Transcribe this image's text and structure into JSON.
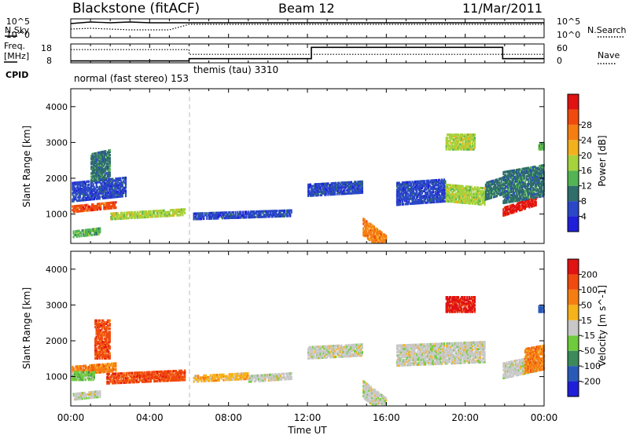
{
  "header": {
    "title": "Blackstone (fitACF)",
    "beam": "Beam 12",
    "date": "11/Mar/2011"
  },
  "panel_labels": {
    "nsky": "N.Sky",
    "nsearch": "N.Search",
    "freq_line1": "Freq.",
    "freq_line2": "[MHz]",
    "nave": "Nave",
    "cpid": "CPID"
  },
  "cpid": {
    "first": "normal (fast stereo) 153",
    "second": "themis (tau) 3310"
  },
  "chart_data": [
    {
      "type": "line",
      "name": "noise",
      "yticks_left": [
        "10^5",
        "10^0"
      ],
      "yticks_right": [
        "10^5",
        "10^0"
      ],
      "series": [
        {
          "name": "N.Sky",
          "style": "solid"
        },
        {
          "name": "N.Search",
          "style": "dotted"
        }
      ],
      "x": [
        0,
        1,
        2,
        3,
        4,
        5,
        6,
        8,
        10,
        12,
        14,
        16,
        18,
        20,
        22,
        24
      ],
      "values_sky_log": [
        0.8,
        0.9,
        0.85,
        0.9,
        0.85,
        0.85,
        0.85,
        0.85,
        0.85,
        0.85,
        0.85,
        0.85,
        0.85,
        0.85,
        0.85,
        0.85
      ],
      "values_search_log": [
        0.55,
        0.6,
        0.55,
        0.5,
        0.5,
        0.5,
        0.85,
        0.85,
        0.85,
        0.85,
        0.85,
        0.85,
        0.85,
        0.85,
        0.85,
        0.85
      ]
    },
    {
      "type": "line",
      "name": "freq-nave",
      "yticks_left": [
        "18",
        "8"
      ],
      "yticks_right": [
        "60",
        "0"
      ],
      "freq_mhz_steps": [
        [
          0,
          9.0
        ],
        [
          6,
          9.0
        ],
        [
          6,
          10.2
        ],
        [
          12.2,
          10.2
        ],
        [
          12.2,
          16.2
        ],
        [
          21.9,
          16.2
        ],
        [
          21.9,
          10.2
        ],
        [
          24,
          10.2
        ]
      ],
      "nave_steps": [
        [
          0,
          0.7
        ],
        [
          6,
          0.7
        ],
        [
          6,
          0.45
        ],
        [
          24,
          0.45
        ]
      ]
    },
    {
      "type": "heatmap",
      "name": "power",
      "ylabel": "Slant Range [km]",
      "ylim": [
        180,
        4500
      ],
      "yticks": [
        1000,
        2000,
        3000,
        4000
      ],
      "colorbar_label": "Power [dB]",
      "colorbar_ticks": [
        4,
        8,
        12,
        16,
        20,
        24,
        28
      ],
      "colorbar_colors": [
        "#1f1fd9",
        "#2a47c8",
        "#2f6e6a",
        "#52b452",
        "#a6d23c",
        "#f2b11d",
        "#f57e12",
        "#f04a0e",
        "#e01212"
      ],
      "patches": [
        {
          "t0": 0.05,
          "t1": 2.3,
          "r0": 1050,
          "r1": 1250,
          "dr": 120,
          "c": 7
        },
        {
          "t0": 0.05,
          "t1": 2.8,
          "r0": 1350,
          "r1": 1900,
          "dr": 150,
          "c": 1
        },
        {
          "t0": 1.0,
          "t1": 2.0,
          "r0": 1900,
          "r1": 2700,
          "dr": 120,
          "c": 2
        },
        {
          "t0": 2.0,
          "t1": 5.8,
          "r0": 850,
          "r1": 1050,
          "dr": 120,
          "c": 4
        },
        {
          "t0": 0.1,
          "t1": 1.5,
          "r0": 350,
          "r1": 550,
          "dr": 90,
          "c": 3
        },
        {
          "t0": 6.2,
          "t1": 11.2,
          "r0": 850,
          "r1": 1050,
          "dr": 90,
          "c": 1
        },
        {
          "t0": 12.0,
          "t1": 14.8,
          "r0": 1500,
          "r1": 1850,
          "dr": 90,
          "c": 1
        },
        {
          "t0": 14.8,
          "t1": 16.0,
          "r0": 400,
          "r1": 900,
          "dr": -500,
          "c": 6
        },
        {
          "t0": 16.5,
          "t1": 19.0,
          "r0": 1250,
          "r1": 1900,
          "dr": 100,
          "c": 1
        },
        {
          "t0": 19.0,
          "t1": 21.0,
          "r0": 1350,
          "r1": 1850,
          "dr": -100,
          "c": 4
        },
        {
          "t0": 19.0,
          "t1": 20.5,
          "r0": 2800,
          "r1": 3250,
          "dr": 0,
          "c": 4
        },
        {
          "t0": 21.0,
          "t1": 21.9,
          "r0": 1400,
          "r1": 1900,
          "dr": 150,
          "c": 2
        },
        {
          "t0": 21.9,
          "t1": 23.6,
          "r0": 950,
          "r1": 1200,
          "dr": 300,
          "c": 8
        },
        {
          "t0": 21.9,
          "t1": 24.0,
          "r0": 1300,
          "r1": 2200,
          "dr": 200,
          "c": 2
        },
        {
          "t0": 23.7,
          "t1": 24.0,
          "r0": 2800,
          "r1": 3000,
          "dr": 0,
          "c": 3
        }
      ]
    },
    {
      "type": "heatmap",
      "name": "velocity",
      "ylabel": "Slant Range [km]",
      "xlabel": "Time UT",
      "ylim": [
        180,
        4500
      ],
      "yticks": [
        1000,
        2000,
        3000,
        4000
      ],
      "xticks": [
        "00:00",
        "04:00",
        "08:00",
        "12:00",
        "16:00",
        "20:00",
        "00:00"
      ],
      "xlim": [
        0,
        24
      ],
      "colorbar_label": "Velocity [m s^-1]",
      "colorbar_ticks": [
        200,
        100,
        50,
        15,
        -15,
        -50,
        -100,
        -200
      ],
      "colorbar_colors": [
        "#1f1fd9",
        "#2a5ab8",
        "#3c8a5a",
        "#6ecc3c",
        "#c8c8c8",
        "#f5b21a",
        "#f57e12",
        "#f04a0e",
        "#e01212"
      ],
      "patches": [
        {
          "t0": 0.05,
          "t1": 2.3,
          "r0": 1050,
          "r1": 1300,
          "dr": 100,
          "c": 6
        },
        {
          "t0": 0.05,
          "t1": 1.2,
          "r0": 900,
          "r1": 1150,
          "dr": 0,
          "c": 3
        },
        {
          "t0": 1.2,
          "t1": 2.0,
          "r0": 1500,
          "r1": 2600,
          "dr": 0,
          "c": 7
        },
        {
          "t0": 1.8,
          "t1": 5.8,
          "r0": 800,
          "r1": 1100,
          "dr": 100,
          "c": 7
        },
        {
          "t0": 0.1,
          "t1": 1.5,
          "r0": 350,
          "r1": 550,
          "dr": 80,
          "c": 4
        },
        {
          "t0": 6.2,
          "t1": 9.0,
          "r0": 850,
          "r1": 1050,
          "dr": 80,
          "c": 5
        },
        {
          "t0": 9.0,
          "t1": 11.2,
          "r0": 850,
          "r1": 1050,
          "dr": 80,
          "c": 4
        },
        {
          "t0": 12.0,
          "t1": 14.8,
          "r0": 1500,
          "r1": 1850,
          "dr": 80,
          "c": 4
        },
        {
          "t0": 14.8,
          "t1": 16.0,
          "r0": 400,
          "r1": 900,
          "dr": -500,
          "c": 4
        },
        {
          "t0": 16.5,
          "t1": 21.0,
          "r0": 1300,
          "r1": 1900,
          "dr": 100,
          "c": 4
        },
        {
          "t0": 19.0,
          "t1": 20.5,
          "r0": 2800,
          "r1": 3250,
          "dr": 0,
          "c": 8
        },
        {
          "t0": 21.9,
          "t1": 23.6,
          "r0": 950,
          "r1": 1400,
          "dr": 200,
          "c": 4
        },
        {
          "t0": 23.0,
          "t1": 24.0,
          "r0": 1100,
          "r1": 1800,
          "dr": 100,
          "c": 6
        },
        {
          "t0": 23.7,
          "t1": 24.0,
          "r0": 2800,
          "r1": 3000,
          "dr": 0,
          "c": 1
        }
      ]
    }
  ]
}
